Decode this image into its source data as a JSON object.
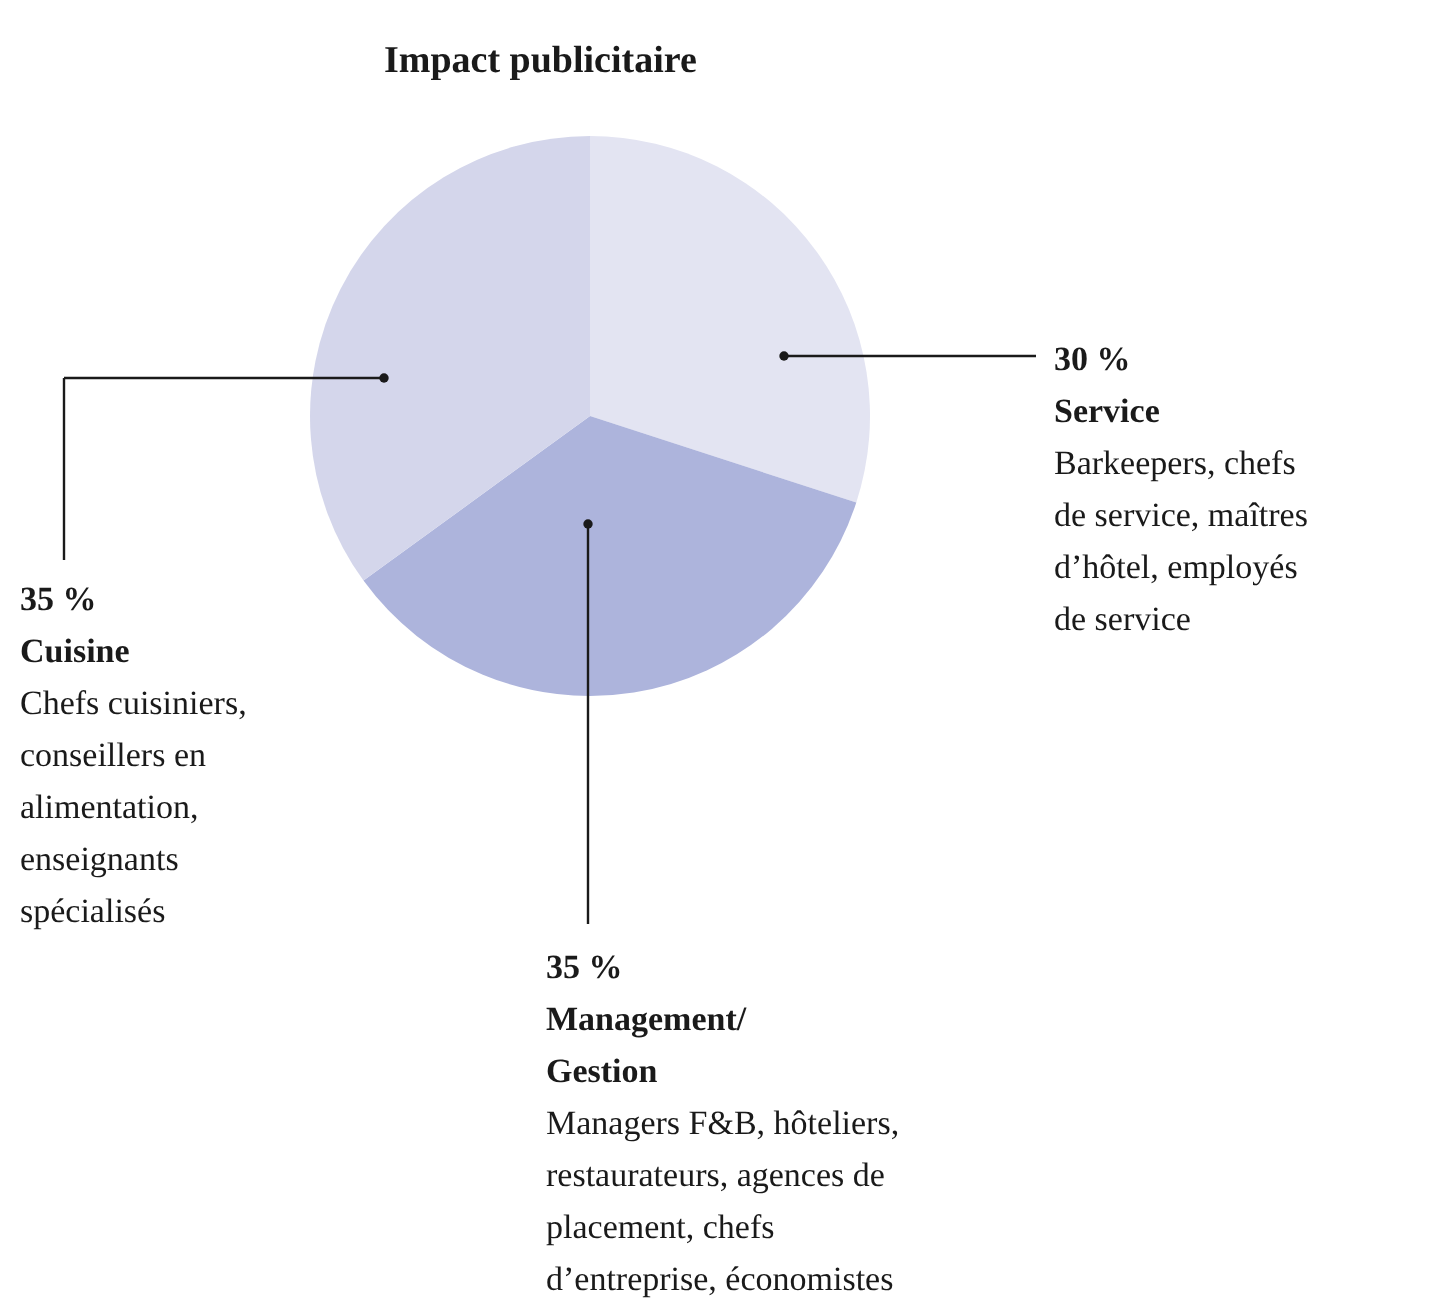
{
  "chart_data": {
    "type": "pie",
    "title": "Impact publicitaire",
    "categories": [
      "Service",
      "Management/Gestion",
      "Cuisine"
    ],
    "values": [
      30,
      35,
      35
    ],
    "value_labels": [
      "30 %",
      "35 %",
      "35 %"
    ],
    "colors": [
      "#e3e4f2",
      "#adb4dc",
      "#d4d6eb"
    ],
    "annotations": [
      "Barkeepers, chefs de service, maîtres d’hôtel, employés de service",
      "Managers F&B, hôteliers, restaurateurs, agences de placement, chefs d’entreprise, économistes",
      "Chefs cuisiniers, conseillers en alimentation, enseignants spécialisés"
    ],
    "legend": false
  }
}
